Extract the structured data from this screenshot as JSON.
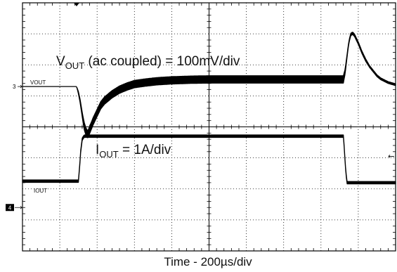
{
  "chart_data": {
    "type": "line",
    "title": "",
    "xlabel": "Time - 200µs/div",
    "ylabel": "",
    "x_unit": "div",
    "y_unit": "div",
    "xlim": [
      0,
      10
    ],
    "ylim": [
      0,
      8
    ],
    "grid": true,
    "legend": "none",
    "annotations": {
      "vout_main": "V",
      "vout_sub": "OUT",
      "vout_rest": " (ac coupled) = 100mV/div",
      "iout_main": "I",
      "iout_sub": "OUT",
      "iout_rest": " = 1A/div"
    },
    "series": [
      {
        "name": "VOUT",
        "channel_marker": "3",
        "color": "#000000",
        "x": [
          0,
          1.45,
          1.5,
          1.55,
          1.6,
          1.65,
          1.7,
          1.75,
          1.8,
          1.9,
          2.0,
          2.1,
          2.2,
          2.4,
          2.6,
          2.8,
          3.0,
          3.3,
          3.6,
          4.0,
          4.5,
          5.0,
          6.0,
          7.0,
          8.0,
          8.6,
          8.65,
          8.7,
          8.75,
          8.8,
          8.85,
          8.9,
          9.0,
          9.1,
          9.2,
          9.3,
          9.4,
          9.5,
          9.6,
          9.8,
          10.0
        ],
        "y": [
          5.3,
          5.3,
          5.1,
          4.8,
          4.4,
          4.05,
          3.85,
          3.75,
          3.9,
          4.2,
          4.45,
          4.7,
          4.85,
          5.05,
          5.2,
          5.3,
          5.38,
          5.43,
          5.47,
          5.5,
          5.52,
          5.53,
          5.53,
          5.53,
          5.53,
          5.53,
          5.8,
          6.3,
          6.75,
          6.98,
          7.02,
          6.95,
          6.7,
          6.4,
          6.15,
          5.95,
          5.8,
          5.65,
          5.55,
          5.43,
          5.36
        ],
        "ripple_div": [
          0,
          0,
          0.04,
          0.06,
          0.08,
          0.12,
          0.12,
          0.12,
          0.12,
          0.12,
          0.12,
          0.12,
          0.12,
          0.12,
          0.12,
          0.12,
          0.12,
          0.12,
          0.12,
          0.12,
          0.12,
          0.12,
          0.12,
          0.12,
          0.12,
          0.12,
          0.08,
          0.05,
          0.04,
          0.04,
          0.04,
          0.04,
          0.04,
          0.04,
          0.04,
          0.03,
          0.03,
          0.03,
          0.03,
          0.03,
          0.03
        ]
      },
      {
        "name": "IOUT",
        "channel_marker": "4",
        "color": "#000000",
        "x": [
          0,
          1.5,
          1.53,
          1.56,
          1.6,
          1.65,
          8.6,
          8.62,
          8.65,
          8.68,
          8.7,
          8.75,
          10.0
        ],
        "y": [
          2.25,
          2.25,
          2.7,
          3.2,
          3.6,
          3.7,
          3.7,
          3.4,
          2.8,
          2.4,
          2.2,
          2.2,
          2.2
        ],
        "ripple_div": [
          0.04,
          0.04,
          0.04,
          0.04,
          0.04,
          0.04,
          0.04,
          0.04,
          0.04,
          0.04,
          0.04,
          0.04,
          0.04
        ]
      }
    ]
  }
}
